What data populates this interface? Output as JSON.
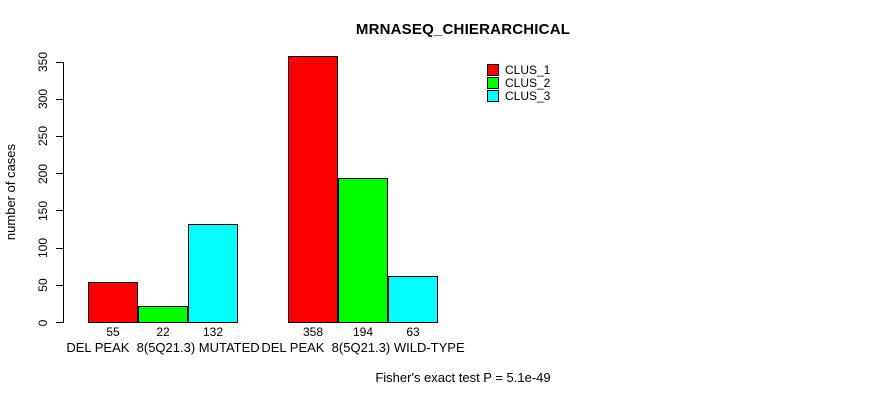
{
  "chart_data": {
    "type": "bar",
    "title": "MRNASEQ_CHIERARCHICAL",
    "ylabel": "number of cases",
    "xlabel": "",
    "ylim": [
      0,
      350
    ],
    "yticks": [
      0,
      50,
      100,
      150,
      200,
      250,
      300,
      350
    ],
    "grid": false,
    "legend_position": "top-right",
    "categories": [
      "DEL PEAK  8(5Q21.3) MUTATED",
      "DEL PEAK  8(5Q21.3) WILD-TYPE"
    ],
    "series": [
      {
        "name": "CLUS_1",
        "color": "#ff0000",
        "values": [
          55,
          358
        ]
      },
      {
        "name": "CLUS_2",
        "color": "#00ff00",
        "values": [
          22,
          194
        ]
      },
      {
        "name": "CLUS_3",
        "color": "#00ffff",
        "values": [
          132,
          63
        ]
      }
    ],
    "show_bar_values": true,
    "footer": "Fisher's exact test P = 5.1e-49"
  }
}
